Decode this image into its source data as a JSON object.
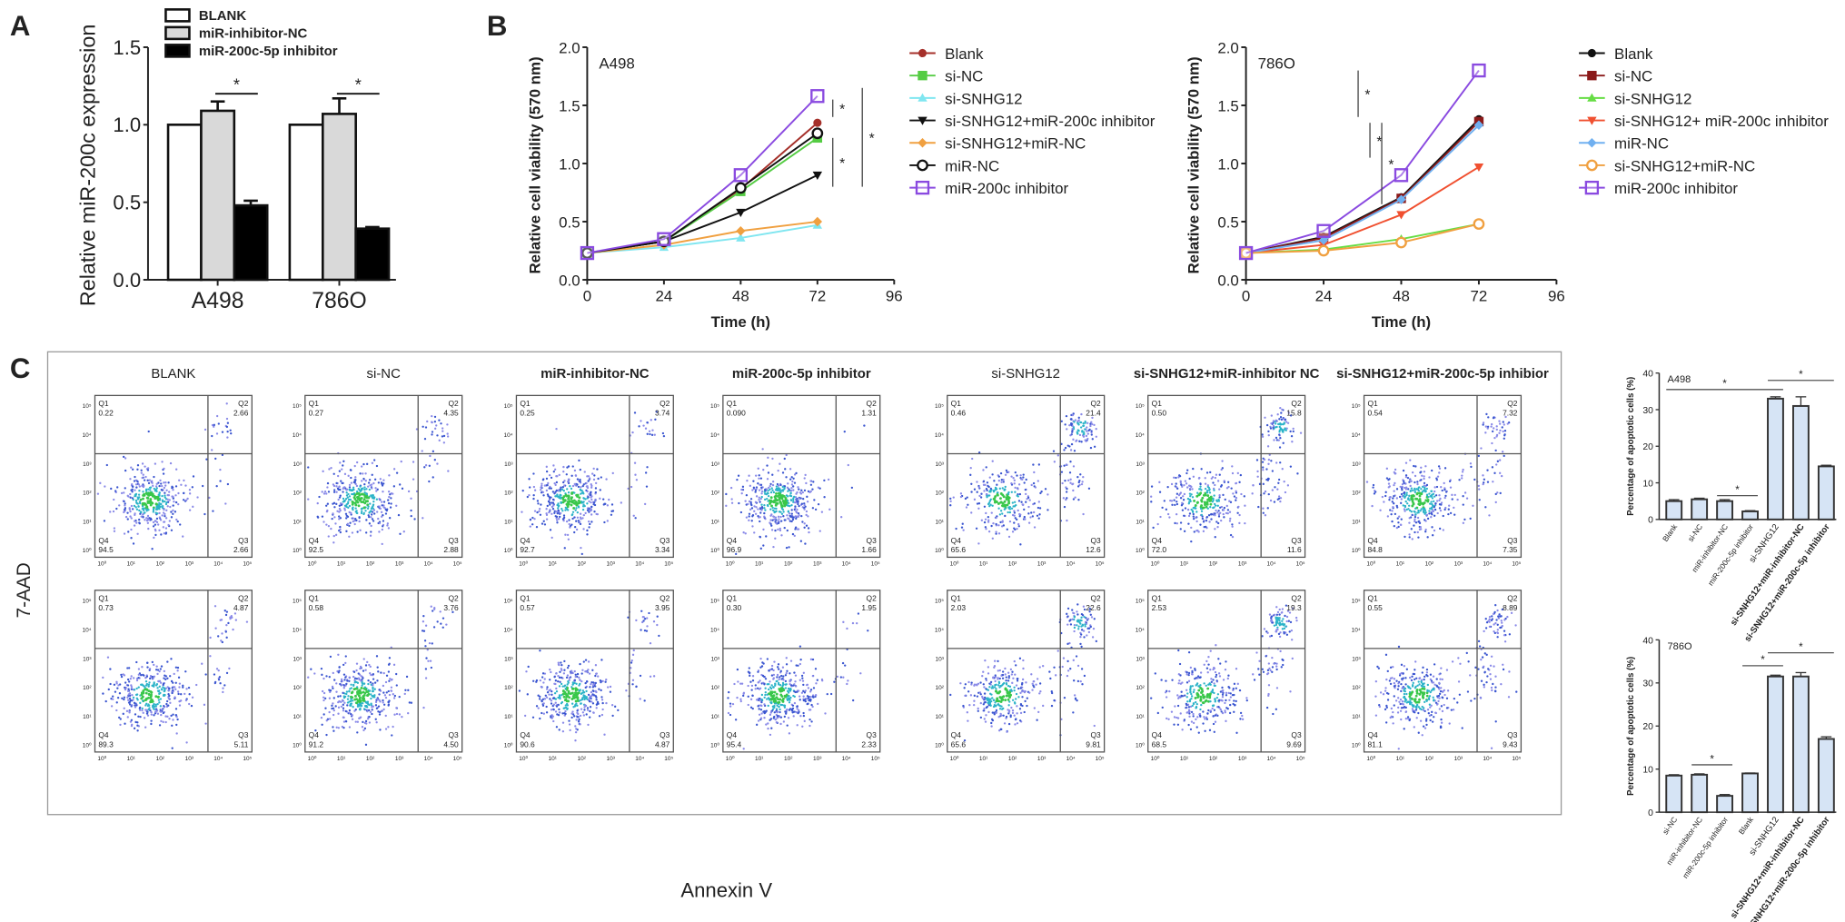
{
  "panels": {
    "a": "A",
    "b": "B",
    "c": "C"
  },
  "chart_data": [
    {
      "id": "A",
      "type": "bar",
      "ylabel": "Relative miR-200c expression",
      "ylim": [
        0,
        1.5
      ],
      "yticks": [
        "0.0",
        "0.5",
        "1.0",
        "1.5"
      ],
      "categories": [
        "A498",
        "786O"
      ],
      "series": [
        {
          "name": "BLANK",
          "values": [
            1.0,
            1.0
          ],
          "errors": [
            0,
            0
          ],
          "color": "#ffffff"
        },
        {
          "name": "miR-inhibitor-NC",
          "values": [
            1.09,
            1.07
          ],
          "errors": [
            0.06,
            0.1
          ],
          "color": "#d9d9d9"
        },
        {
          "name": "miR-200c-5p inhibitor",
          "values": [
            0.48,
            0.33
          ],
          "errors": [
            0.03,
            0.01
          ],
          "color": "#000000"
        }
      ],
      "significance": [
        {
          "label": "*"
        },
        {
          "label": "*"
        }
      ]
    },
    {
      "id": "B-A498",
      "type": "line",
      "title": "A498",
      "xlabel": "Time (h)",
      "ylabel": "Relative cell viability (570 nm)",
      "x": [
        0,
        24,
        48,
        72
      ],
      "xticks": [
        "0",
        "24",
        "48",
        "72",
        "96"
      ],
      "xlim": [
        0,
        96
      ],
      "ylim": [
        0,
        2.0
      ],
      "yticks": [
        "0.0",
        "0.5",
        "1.0",
        "1.5",
        "2.0"
      ],
      "series": [
        {
          "name": "Blank",
          "values": [
            0.23,
            0.33,
            0.78,
            1.35
          ],
          "color": "#a5302a",
          "marker": "circle"
        },
        {
          "name": "si-NC",
          "values": [
            0.23,
            0.33,
            0.76,
            1.22
          ],
          "color": "#55cc44",
          "marker": "square"
        },
        {
          "name": "si-SNHG12",
          "values": [
            0.23,
            0.28,
            0.36,
            0.47
          ],
          "color": "#80e6f0",
          "marker": "triangle"
        },
        {
          "name": "si-SNHG12+miR-200c inhibitor",
          "values": [
            0.23,
            0.33,
            0.58,
            0.9
          ],
          "color": "#111111",
          "marker": "triangle-down"
        },
        {
          "name": "si-SNHG12+miR-NC",
          "values": [
            0.23,
            0.3,
            0.42,
            0.5
          ],
          "color": "#f0a040",
          "marker": "diamond"
        },
        {
          "name": "miR-NC",
          "values": [
            0.23,
            0.33,
            0.79,
            1.26
          ],
          "color": "#111111",
          "marker": "open-circle"
        },
        {
          "name": "miR-200c inhibitor",
          "values": [
            0.23,
            0.35,
            0.9,
            1.58
          ],
          "color": "#8a4ae0",
          "marker": "open-square"
        }
      ],
      "significance": [
        {
          "label": "*"
        },
        {
          "label": "*"
        },
        {
          "label": "*"
        }
      ]
    },
    {
      "id": "B-786O",
      "type": "line",
      "title": "786O",
      "xlabel": "Time (h)",
      "ylabel": "Relative cell viability (570 nm)",
      "x": [
        0,
        24,
        48,
        72
      ],
      "xticks": [
        "0",
        "24",
        "48",
        "72",
        "96"
      ],
      "xlim": [
        0,
        96
      ],
      "ylim": [
        0,
        2.0
      ],
      "yticks": [
        "0.0",
        "0.5",
        "1.0",
        "1.5",
        "2.0"
      ],
      "series": [
        {
          "name": "Blank",
          "values": [
            0.23,
            0.37,
            0.71,
            1.38
          ],
          "color": "#111111",
          "marker": "circle"
        },
        {
          "name": "si-NC",
          "values": [
            0.23,
            0.36,
            0.7,
            1.36
          ],
          "color": "#8b1a1a",
          "marker": "square"
        },
        {
          "name": "si-SNHG12",
          "values": [
            0.23,
            0.26,
            0.35,
            0.48
          ],
          "color": "#66dd44",
          "marker": "triangle"
        },
        {
          "name": "si-SNHG12+ miR-200c inhibitor",
          "values": [
            0.23,
            0.3,
            0.56,
            0.97
          ],
          "color": "#f05030",
          "marker": "triangle-down"
        },
        {
          "name": "miR-NC",
          "values": [
            0.23,
            0.34,
            0.69,
            1.33
          ],
          "color": "#70b0f0",
          "marker": "diamond"
        },
        {
          "name": "si-SNHG12+miR-NC",
          "values": [
            0.23,
            0.25,
            0.32,
            0.48
          ],
          "color": "#f0a040",
          "marker": "open-circle"
        },
        {
          "name": "miR-200c inhibitor",
          "values": [
            0.23,
            0.42,
            0.9,
            1.8
          ],
          "color": "#8a4ae0",
          "marker": "open-square"
        }
      ],
      "significance": [
        {
          "label": "*"
        },
        {
          "label": "*"
        },
        {
          "label": "*"
        }
      ]
    },
    {
      "id": "C-A498-bar",
      "type": "bar",
      "title": "A498",
      "ylabel": "Percentage of apoptotic cells (%)",
      "ylim": [
        0,
        40
      ],
      "yticks": [
        "0",
        "10",
        "20",
        "30",
        "40"
      ],
      "categories": [
        "Blank",
        "si-NC",
        "miR-inhibitor-NC",
        "miR-200c-5p inhibitor",
        "si-SNHG12",
        "si-SNHG12+miR-inhibitor-NC",
        "si-SNHG12+miR-200c-5p inhibitor"
      ],
      "values": [
        5.0,
        5.5,
        5.0,
        2.2,
        33.0,
        31.0,
        14.5
      ],
      "errors": [
        0.4,
        0.3,
        0.4,
        0.2,
        0.5,
        2.5,
        0.3
      ],
      "color": "#d6e4f5",
      "significance": [
        {
          "label": "*"
        },
        {
          "label": "*"
        },
        {
          "label": "*"
        }
      ]
    },
    {
      "id": "C-786O-bar",
      "type": "bar",
      "title": "786O",
      "ylabel": "Percentage of apoptotic cells (%)",
      "ylim": [
        0,
        40
      ],
      "yticks": [
        "0",
        "10",
        "20",
        "30",
        "40"
      ],
      "categories": [
        "si-NC",
        "miR-inhibitor-NC",
        "miR-200c-5p inhibitor",
        "Blank",
        "si-SNHG12",
        "si-SNHG12+miR-inhibitor-NC",
        "si-SNHG12+miR-200c-5p inhibitor"
      ],
      "values": [
        8.5,
        8.7,
        3.8,
        9.0,
        31.5,
        31.5,
        17.0
      ],
      "errors": [
        0.2,
        0.2,
        0.3,
        0.1,
        0.3,
        0.9,
        0.5
      ],
      "color": "#d6e4f5",
      "significance": [
        {
          "label": "*"
        },
        {
          "label": "*"
        },
        {
          "label": "*"
        }
      ]
    },
    {
      "id": "C-flow",
      "type": "scatter",
      "xlabel": "Annexin V",
      "ylabel": "7-AAD",
      "axis_ticks": [
        "10⁰",
        "10¹",
        "10²",
        "10³",
        "10⁴",
        "10⁵"
      ],
      "quadrant_names": [
        "Q1",
        "Q2",
        "Q3",
        "Q4"
      ],
      "columns": [
        "BLANK",
        "si-NC",
        "miR-inhibitor-NC",
        "miR-200c-5p inhibitor",
        "si-SNHG12",
        "si-SNHG12+miR-inhibitor NC",
        "si-SNHG12+miR-200c-5p inhibior"
      ],
      "rows": [
        {
          "quadrants": [
            {
              "Q1": "0.22",
              "Q2": "2.66",
              "Q3": "2.66",
              "Q4": "94.5"
            },
            {
              "Q1": "0.27",
              "Q2": "4.35",
              "Q3": "2.88",
              "Q4": "92.5"
            },
            {
              "Q1": "0.25",
              "Q2": "3.74",
              "Q3": "3.34",
              "Q4": "92.7"
            },
            {
              "Q1": "0.090",
              "Q2": "1.31",
              "Q3": "1.66",
              "Q4": "96.9"
            },
            {
              "Q1": "0.46",
              "Q2": "21.4",
              "Q3": "12.6",
              "Q4": "65.6"
            },
            {
              "Q1": "0.50",
              "Q2": "15.8",
              "Q3": "11.6",
              "Q4": "72.0"
            },
            {
              "Q1": "0.54",
              "Q2": "7.32",
              "Q3": "7.35",
              "Q4": "84.8"
            }
          ]
        },
        {
          "quadrants": [
            {
              "Q1": "0.73",
              "Q2": "4.87",
              "Q3": "5.11",
              "Q4": "89.3"
            },
            {
              "Q1": "0.58",
              "Q2": "3.76",
              "Q3": "4.50",
              "Q4": "91.2"
            },
            {
              "Q1": "0.57",
              "Q2": "3.95",
              "Q3": "4.87",
              "Q4": "90.6"
            },
            {
              "Q1": "0.30",
              "Q2": "1.95",
              "Q3": "2.33",
              "Q4": "95.4"
            },
            {
              "Q1": "2.03",
              "Q2": "22.6",
              "Q3": "9.81",
              "Q4": "65.6"
            },
            {
              "Q1": "2.53",
              "Q2": "19.3",
              "Q3": "9.69",
              "Q4": "68.5"
            },
            {
              "Q1": "0.55",
              "Q2": "8.89",
              "Q3": "9.43",
              "Q4": "81.1"
            }
          ]
        }
      ]
    }
  ]
}
